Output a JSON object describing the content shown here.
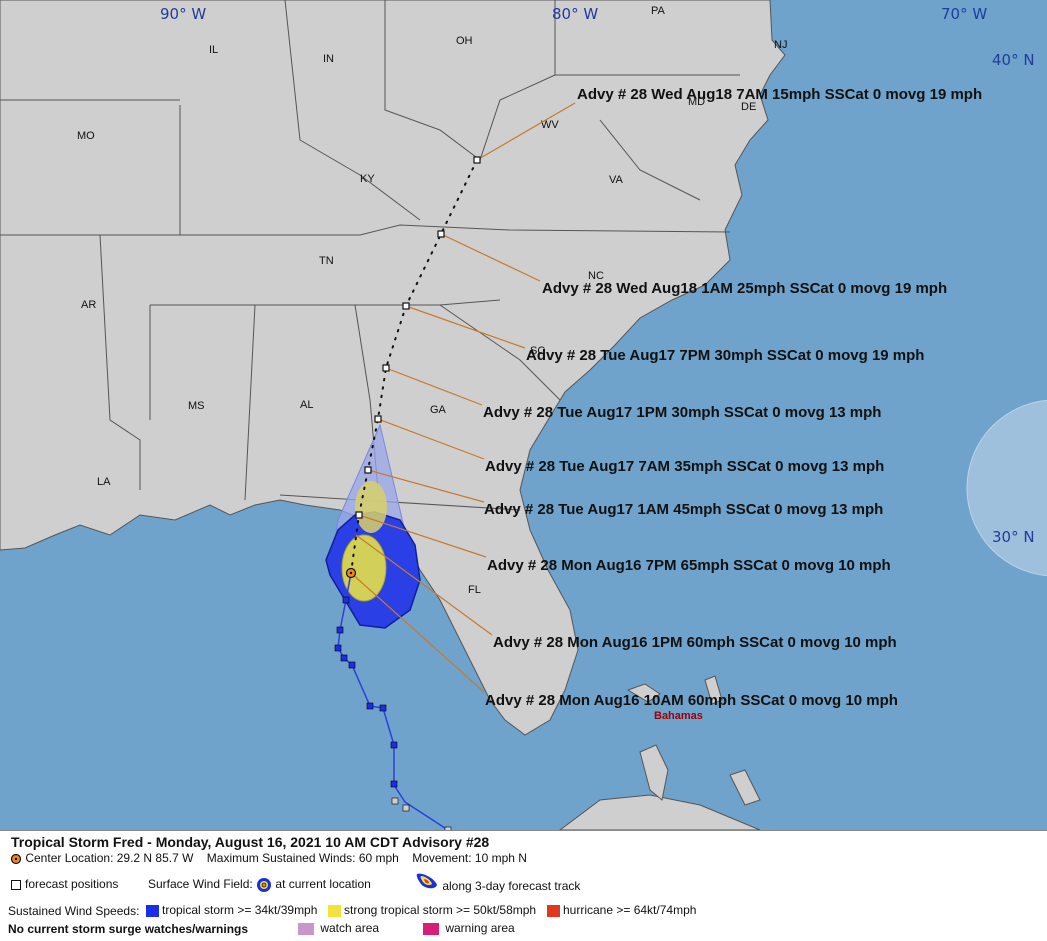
{
  "map": {
    "longitude_labels": [
      "90° W",
      "80° W",
      "70° W"
    ],
    "latitude_labels": [
      "40° N",
      "30° N"
    ],
    "states": [
      "IL",
      "IN",
      "OH",
      "PA",
      "NJ",
      "MO",
      "KY",
      "WV",
      "MD",
      "VA",
      "DE",
      "TN",
      "NC",
      "AR",
      "SC",
      "MS",
      "AL",
      "GA",
      "LA",
      "FL"
    ],
    "place_labels": {
      "bahamas": "Bahamas"
    },
    "advisories": [
      "Advy # 28 Wed Aug18 7AM  15mph SSCat 0 movg 19 mph",
      "Advy # 28 Wed Aug18 1AM  25mph SSCat 0 movg 19 mph",
      "Advy # 28 Tue Aug17 7PM  30mph SSCat 0 movg 19 mph",
      "Advy # 28 Tue Aug17 1PM  30mph SSCat 0 movg 13 mph",
      "Advy # 28 Tue Aug17 7AM  35mph SSCat 0 movg 13 mph",
      "Advy # 28 Tue Aug17 1AM  45mph SSCat 0 movg 13 mph",
      "Advy # 28 Mon Aug16 7PM  65mph SSCat 0 movg 10 mph",
      "Advy # 28 Mon Aug16 1PM  60mph SSCat 0 movg 10 mph",
      "Advy # 28 Mon Aug16 10AM  60mph SSCat 0 movg 10 mph"
    ],
    "colors": {
      "water": "#6fa3cc",
      "land": "#cfcfcf",
      "tropical_storm_field": "#2a3fe6",
      "strong_tropical_storm_field": "#e6e04a",
      "cone": "#9aa6e8",
      "leader_line": "#c67a2e"
    }
  },
  "legend": {
    "title": "Tropical Storm Fred  -  Monday, August 16, 2021  10 AM CDT   Advisory #28",
    "center_location": "Center Location: 29.2 N  85.7 W",
    "max_winds": "Maximum Sustained Winds: 60 mph",
    "movement": "Movement: 10 mph N",
    "forecast_positions": "forecast positions",
    "surface_wind_field": "Surface Wind Field:",
    "at_current_location": "at current location",
    "along_track": "along 3-day forecast track",
    "sustained_wind_speeds": "Sustained Wind Speeds:",
    "tropical_storm": "tropical storm >= 34kt/39mph",
    "strong_tropical_storm": "strong tropical storm >= 50kt/58mph",
    "hurricane": "hurricane >= 64kt/74mph",
    "surge_note": "No current storm surge watches/warnings",
    "watch_area": "watch area",
    "warning_area": "warning area",
    "colors": {
      "tropical_storm": "#1a2ee8",
      "strong_tropical_storm": "#f1e339",
      "hurricane": "#e2371f",
      "watch_area": "#c896c8",
      "warning_area": "#d81e78"
    }
  }
}
